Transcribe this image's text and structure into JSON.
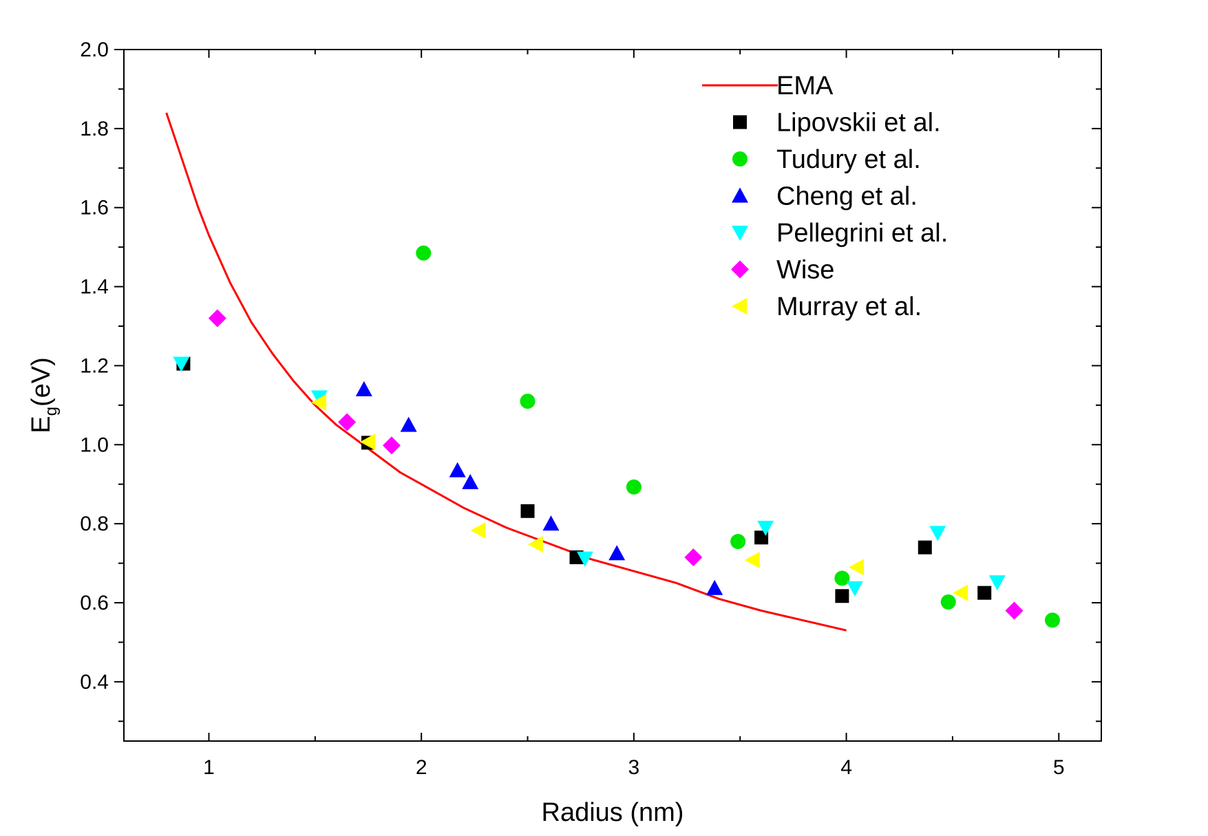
{
  "chart_data": {
    "type": "scatter",
    "title": "",
    "xlabel": "Radius (nm)",
    "ylabel_main": "E",
    "ylabel_sub": "g",
    "ylabel_suffix": "(eV)",
    "xlim": [
      0.6,
      5.2
    ],
    "ylim": [
      0.25,
      2.0
    ],
    "x_ticks": [
      1,
      2,
      3,
      4,
      5
    ],
    "x_tick_labels": [
      "1",
      "2",
      "3",
      "4",
      "5"
    ],
    "y_ticks": [
      0.4,
      0.6,
      0.8,
      1.0,
      1.2,
      1.4,
      1.6,
      1.8,
      2.0
    ],
    "y_tick_labels": [
      "0.4",
      "0.6",
      "0.8",
      "1.0",
      "1.2",
      "1.4",
      "1.6",
      "1.8",
      "2.0"
    ],
    "grid": false,
    "legend_position": "top-right",
    "curve": {
      "name": "EMA",
      "color": "#ff0000",
      "x": [
        0.8,
        0.85,
        0.9,
        0.95,
        1.0,
        1.1,
        1.2,
        1.3,
        1.4,
        1.5,
        1.6,
        1.7,
        1.8,
        1.9,
        2.0,
        2.2,
        2.4,
        2.6,
        2.8,
        3.0,
        3.2,
        3.4,
        3.6,
        3.8,
        4.0
      ],
      "y": [
        1.84,
        1.76,
        1.68,
        1.6,
        1.53,
        1.41,
        1.31,
        1.23,
        1.16,
        1.1,
        1.05,
        1.01,
        0.97,
        0.93,
        0.9,
        0.84,
        0.79,
        0.75,
        0.71,
        0.68,
        0.65,
        0.61,
        0.58,
        0.555,
        0.53
      ]
    },
    "series": [
      {
        "name": "Lipovskii et al.",
        "marker": "square",
        "color": "#000000",
        "x": [
          0.88,
          1.75,
          2.5,
          2.73,
          3.6,
          3.98,
          4.37,
          4.65
        ],
        "y": [
          1.205,
          1.005,
          0.832,
          0.715,
          0.765,
          0.617,
          0.74,
          0.625
        ]
      },
      {
        "name": "Tudury et al.",
        "marker": "circle",
        "color": "#00e600",
        "x": [
          2.01,
          2.5,
          3.0,
          3.49,
          3.98,
          4.48,
          4.97
        ],
        "y": [
          1.485,
          1.11,
          0.893,
          0.755,
          0.662,
          0.602,
          0.556
        ]
      },
      {
        "name": "Cheng et al.",
        "marker": "triangle-up",
        "color": "#0000ff",
        "x": [
          1.73,
          1.94,
          2.17,
          2.23,
          2.61,
          2.92,
          3.38
        ],
        "y": [
          1.14,
          1.05,
          0.935,
          0.905,
          0.8,
          0.725,
          0.637
        ]
      },
      {
        "name": "Pellegrini et al.",
        "marker": "triangle-down",
        "color": "#00ffff",
        "x": [
          0.87,
          1.52,
          2.77,
          3.62,
          4.04,
          4.43,
          4.71
        ],
        "y": [
          1.205,
          1.12,
          0.712,
          0.79,
          0.637,
          0.777,
          0.652
        ]
      },
      {
        "name": "Wise",
        "marker": "diamond",
        "color": "#ff00ff",
        "x": [
          1.04,
          1.65,
          1.86,
          3.28,
          4.79
        ],
        "y": [
          1.32,
          1.057,
          0.998,
          0.715,
          0.58
        ]
      },
      {
        "name": "Murray et al.",
        "marker": "triangle-left",
        "color": "#ffff00",
        "x": [
          1.52,
          1.75,
          2.27,
          2.54,
          3.56,
          4.05,
          4.54
        ],
        "y": [
          1.107,
          1.007,
          0.783,
          0.748,
          0.708,
          0.69,
          0.625
        ]
      }
    ]
  }
}
